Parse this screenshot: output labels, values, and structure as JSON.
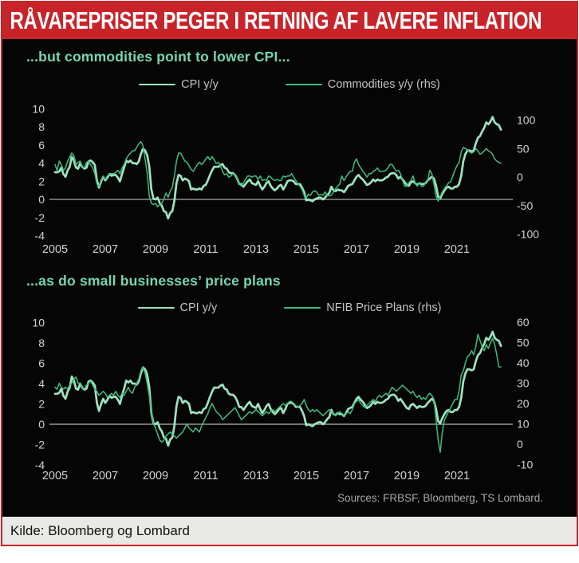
{
  "header": {
    "title": "RÅVAREPRISER PEGER I RETNING AF LAVERE INFLATION"
  },
  "footer": {
    "caption": "Kilde: Bloomberg og Lombard"
  },
  "colors": {
    "banner_red": "#c9232a",
    "background_black": "#050505",
    "title_mint": "#76d7b0",
    "cpi_line": "#9ee3c0",
    "secondary_line": "#3fbd7d",
    "axis_text": "#d2d2d2",
    "zero_line": "#979797",
    "legend_text": "#c4c4c4",
    "sources_text": "#a9a9a9",
    "footer_bg": "#e9e9e8"
  },
  "chart_data": {
    "type": "line",
    "sources_note": "Sources: FRBSF, Bloomberg, TS Lombard.",
    "x": {
      "start_year": 2005,
      "frequency": "monthly",
      "end": "2022"
    },
    "series_data": {
      "cpi_yoy": [
        3.0,
        3.0,
        3.1,
        3.5,
        2.8,
        2.5,
        3.2,
        3.6,
        4.7,
        4.3,
        3.5,
        3.4,
        4.0,
        3.6,
        3.4,
        3.5,
        4.2,
        4.3,
        4.1,
        3.8,
        2.1,
        1.3,
        2.0,
        2.5,
        2.1,
        2.4,
        2.8,
        2.6,
        2.7,
        2.7,
        2.4,
        2.0,
        2.8,
        3.5,
        4.3,
        4.1,
        4.3,
        4.0,
        4.0,
        3.9,
        4.2,
        5.0,
        5.6,
        5.4,
        4.9,
        3.7,
        1.1,
        0.1,
        0.0,
        0.2,
        -0.4,
        -0.7,
        -1.3,
        -1.4,
        -2.1,
        -1.5,
        -1.3,
        -0.2,
        1.8,
        2.7,
        2.6,
        2.1,
        2.3,
        2.2,
        2.0,
        1.1,
        1.2,
        1.1,
        1.1,
        1.2,
        1.1,
        1.5,
        1.6,
        2.1,
        2.7,
        3.2,
        3.6,
        3.6,
        3.6,
        3.8,
        3.9,
        3.5,
        3.4,
        3.0,
        2.9,
        2.9,
        2.7,
        2.3,
        1.7,
        1.7,
        1.4,
        1.7,
        2.0,
        2.2,
        1.8,
        1.7,
        1.6,
        2.0,
        1.5,
        1.1,
        1.4,
        1.8,
        2.0,
        1.5,
        1.2,
        1.0,
        1.2,
        1.5,
        1.6,
        1.1,
        1.5,
        2.0,
        2.1,
        2.1,
        2.0,
        1.7,
        1.7,
        1.7,
        1.3,
        0.8,
        -0.1,
        0.0,
        -0.1,
        -0.2,
        0.0,
        0.1,
        0.2,
        0.2,
        0.0,
        0.2,
        0.5,
        0.7,
        1.4,
        1.0,
        0.9,
        1.1,
        1.0,
        1.0,
        0.8,
        1.1,
        1.5,
        1.6,
        1.7,
        2.1,
        2.5,
        2.7,
        2.4,
        2.2,
        1.9,
        1.6,
        1.7,
        1.9,
        2.2,
        2.0,
        2.2,
        2.1,
        2.1,
        2.2,
        2.4,
        2.5,
        2.8,
        2.9,
        2.9,
        2.7,
        2.3,
        2.5,
        2.2,
        1.9,
        1.6,
        1.5,
        1.9,
        2.0,
        1.8,
        1.6,
        1.8,
        1.7,
        1.7,
        1.8,
        2.1,
        2.3,
        2.5,
        2.3,
        1.5,
        0.3,
        0.1,
        0.6,
        1.0,
        1.3,
        1.4,
        1.2,
        1.2,
        1.4,
        1.4,
        1.7,
        2.6,
        4.2,
        5.0,
        5.4,
        5.4,
        5.3,
        5.4,
        6.2,
        6.8,
        7.0,
        7.5,
        7.9,
        8.5,
        8.3,
        8.6,
        9.1,
        8.5,
        8.3,
        8.2,
        7.7
      ],
      "commodities_yoy": [
        22,
        12,
        28,
        22,
        12,
        16,
        28,
        35,
        42,
        38,
        22,
        26,
        28,
        18,
        16,
        26,
        28,
        22,
        16,
        6,
        -12,
        -16,
        -6,
        2,
        -4,
        2,
        6,
        6,
        6,
        8,
        12,
        6,
        16,
        22,
        32,
        38,
        42,
        46,
        46,
        52,
        58,
        62,
        55,
        32,
        8,
        -32,
        -46,
        -48,
        -46,
        -52,
        -48,
        -46,
        -38,
        -28,
        -35,
        -25,
        -18,
        2,
        28,
        42,
        42,
        35,
        28,
        26,
        20,
        14,
        10,
        16,
        22,
        26,
        22,
        26,
        32,
        36,
        30,
        36,
        30,
        24,
        26,
        20,
        10,
        4,
        6,
        0,
        2,
        6,
        4,
        -2,
        -12,
        -16,
        -10,
        -4,
        2,
        2,
        0,
        2,
        2,
        -4,
        2,
        -6,
        -4,
        -6,
        2,
        0,
        -4,
        -6,
        -4,
        -6,
        -6,
        2,
        0,
        2,
        2,
        6,
        0,
        -6,
        -12,
        -16,
        -22,
        -32,
        -36,
        -30,
        -32,
        -26,
        -24,
        -26,
        -32,
        -30,
        -32,
        -26,
        -32,
        -33,
        -32,
        -26,
        -20,
        -16,
        -12,
        2,
        -6,
        0,
        6,
        10,
        10,
        26,
        32,
        22,
        16,
        10,
        6,
        0,
        6,
        6,
        10,
        12,
        16,
        10,
        10,
        10,
        12,
        16,
        22,
        22,
        16,
        10,
        12,
        6,
        -6,
        -16,
        -16,
        -10,
        -6,
        2,
        -10,
        -16,
        -10,
        -16,
        -16,
        -10,
        -6,
        12,
        6,
        -12,
        -34,
        -42,
        -34,
        -26,
        -20,
        -15,
        -10,
        -8,
        2,
        12,
        20,
        26,
        44,
        52,
        50,
        48,
        44,
        42,
        44,
        50,
        46,
        40,
        42,
        46,
        50,
        46,
        44,
        40,
        32,
        28,
        26,
        24
      ],
      "nfib_price_plans": [
        28,
        27,
        30,
        28,
        27,
        28,
        27,
        29,
        30,
        32,
        33,
        30,
        30,
        28,
        27,
        29,
        30,
        31,
        29,
        27,
        26,
        24,
        25,
        26,
        25,
        23,
        24,
        25,
        24,
        26,
        24,
        23,
        25,
        24,
        26,
        28,
        26,
        25,
        28,
        30,
        32,
        36,
        38,
        35,
        30,
        24,
        16,
        10,
        8,
        5,
        2,
        1,
        2,
        4,
        5,
        6,
        5,
        4,
        3,
        4,
        5,
        6,
        8,
        10,
        8,
        7,
        6,
        8,
        7,
        6,
        9,
        11,
        13,
        15,
        18,
        20,
        18,
        16,
        15,
        14,
        12,
        13,
        14,
        15,
        16,
        17,
        18,
        16,
        14,
        12,
        13,
        14,
        15,
        16,
        15,
        16,
        17,
        16,
        15,
        14,
        15,
        16,
        15,
        16,
        17,
        16,
        17,
        18,
        19,
        20,
        19,
        20,
        21,
        21,
        20,
        19,
        18,
        19,
        20,
        22,
        19,
        17,
        16,
        17,
        16,
        17,
        16,
        15,
        14,
        15,
        16,
        17,
        16,
        15,
        14,
        15,
        16,
        15,
        14,
        15,
        16,
        15,
        17,
        20,
        21,
        22,
        20,
        19,
        18,
        19,
        20,
        21,
        22,
        21,
        23,
        24,
        23,
        24,
        25,
        24,
        26,
        28,
        27,
        26,
        27,
        28,
        29,
        28,
        27,
        26,
        25,
        26,
        24,
        23,
        24,
        22,
        23,
        22,
        24,
        25,
        24,
        22,
        12,
        2,
        -4,
        6,
        12,
        14,
        16,
        18,
        20,
        22,
        22,
        26,
        34,
        36,
        40,
        43,
        44,
        46,
        44,
        48,
        54,
        51,
        48,
        46,
        49,
        47,
        50,
        52,
        49,
        44,
        38,
        38
      ]
    },
    "charts": [
      {
        "type": "line",
        "title": "...but commodities point to lower CPI...",
        "left_axis": {
          "min": -4,
          "max": 10,
          "ticks": [
            10,
            8,
            6,
            4,
            2,
            0,
            -2,
            -4
          ]
        },
        "right_axis": {
          "min": -102.5,
          "max": 119.5,
          "ticks": [
            100,
            50,
            0,
            -50,
            -100
          ]
        },
        "x_ticks": [
          2005,
          2007,
          2009,
          2011,
          2013,
          2015,
          2017,
          2019,
          2021
        ],
        "zero_line": true,
        "grid": false,
        "legend_position": "top-center",
        "series": [
          {
            "label": "CPI y/y",
            "data": "cpi_yoy",
            "axis": "left",
            "color": "#9ee3c0",
            "width": 2.7
          },
          {
            "label": "Commodities y/y (rhs)",
            "data": "commodities_yoy",
            "axis": "right",
            "color": "#3fbd7d",
            "width": 1.5
          }
        ]
      },
      {
        "type": "line",
        "title": "...as do small businesses’ price plans",
        "left_axis": {
          "min": -4,
          "max": 10,
          "ticks": [
            10,
            8,
            6,
            4,
            2,
            0,
            -2,
            -4
          ]
        },
        "right_axis": {
          "min": -10.2,
          "max": 59.8,
          "ticks": [
            60,
            50,
            40,
            30,
            20,
            10,
            0,
            -10
          ]
        },
        "x_ticks": [
          2005,
          2007,
          2009,
          2011,
          2013,
          2015,
          2017,
          2019,
          2021
        ],
        "zero_line": true,
        "grid": false,
        "legend_position": "top-center",
        "series": [
          {
            "label": "CPI y/y",
            "data": "cpi_yoy",
            "axis": "left",
            "color": "#9ee3c0",
            "width": 2.7
          },
          {
            "label": "NFIB Price Plans (rhs)",
            "data": "nfib_price_plans",
            "axis": "right",
            "color": "#3fbd7d",
            "width": 1.5
          }
        ]
      }
    ]
  }
}
